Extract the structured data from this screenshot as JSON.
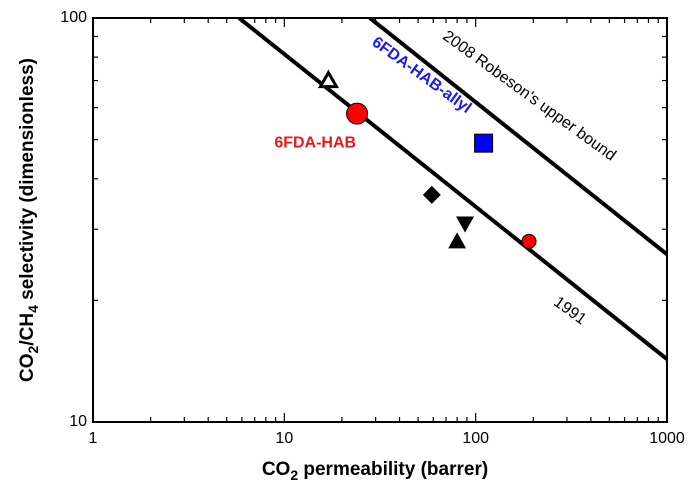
{
  "chart_data": {
    "type": "scatter",
    "title": "",
    "x_scale": "log",
    "y_scale": "log",
    "xlim": [
      1,
      1000
    ],
    "ylim": [
      10,
      100
    ],
    "grid": false,
    "x_tick_labels": [
      "1",
      "10",
      "100",
      "1000"
    ],
    "y_tick_labels": [
      "10",
      "100"
    ],
    "x_ticks": [
      1,
      10,
      100,
      1000
    ],
    "y_ticks": [
      10,
      100
    ],
    "xlabel": {
      "prefix": "CO",
      "sub": "2",
      "suffix": " permeability (barrer)"
    },
    "ylabel": {
      "a": "CO",
      "a_sub": "2",
      "b": "/CH",
      "b_sub": "4",
      "c": " selectivity (dimensionless)"
    },
    "lines": [
      {
        "label": "1991",
        "color": "#000000",
        "x": [
          5.8,
          1000
        ],
        "y": [
          100,
          14.3
        ]
      },
      {
        "label": "2008 Robeson's upper bound",
        "color": "#000000",
        "x": [
          28,
          1000
        ],
        "y": [
          100,
          26
        ]
      }
    ],
    "points": [
      {
        "label": "6FDA-HAB",
        "marker": "circle",
        "color": "#ff0000",
        "size": "large",
        "x": 24,
        "y": 58
      },
      {
        "label": "6FDA-HAB-allyl",
        "marker": "square",
        "color": "#0000ff",
        "size": "large",
        "x": 110,
        "y": 49
      },
      {
        "label": "",
        "marker": "circle",
        "color": "#ff0000",
        "size": "small",
        "x": 190,
        "y": 28
      },
      {
        "label": "",
        "marker": "triangle-up-open",
        "color": "#000000",
        "size": "medium",
        "x": 17,
        "y": 70
      },
      {
        "label": "",
        "marker": "diamond",
        "color": "#000000",
        "size": "medium",
        "x": 59,
        "y": 36.5
      },
      {
        "label": "",
        "marker": "triangle-down",
        "color": "#000000",
        "size": "medium",
        "x": 88,
        "y": 31
      },
      {
        "label": "",
        "marker": "triangle-up",
        "color": "#000000",
        "size": "medium",
        "x": 80,
        "y": 28
      }
    ],
    "annotations": [
      {
        "text": "6FDA-HAB",
        "color": "#e8191c",
        "bold": true,
        "x": 14.5,
        "y": 49,
        "rotate": 0
      },
      {
        "text": "6FDA-HAB-allyl",
        "color": "#1a1aee",
        "bold": true,
        "x": 52,
        "y": 72,
        "rotate": 36
      },
      {
        "text": "2008 Robeson's upper bound",
        "color": "#000000",
        "bold": false,
        "x": 190,
        "y": 64,
        "rotate": 36
      },
      {
        "text": "1991",
        "color": "#000000",
        "bold": false,
        "x": 310,
        "y": 18.8,
        "rotate": 36
      }
    ]
  }
}
